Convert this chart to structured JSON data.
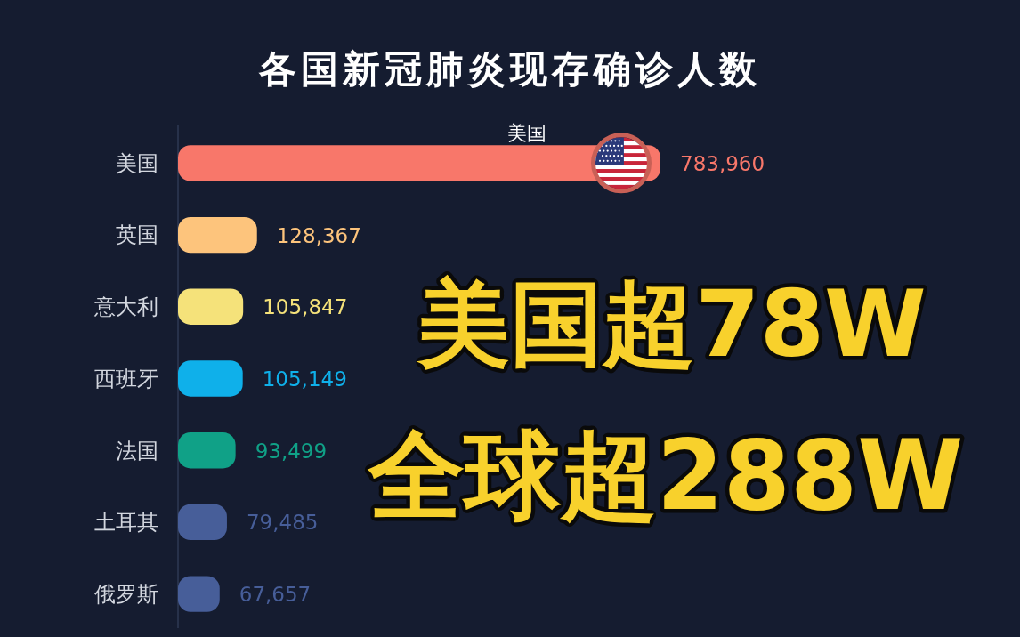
{
  "chart_data": {
    "type": "bar",
    "orientation": "horizontal",
    "title": "各国新冠肺炎现存确诊人数",
    "categories": [
      "美国",
      "英国",
      "意大利",
      "西班牙",
      "法国",
      "土耳其",
      "俄罗斯"
    ],
    "values": [
      783960,
      128367,
      105847,
      105149,
      93499,
      79485,
      67657
    ],
    "value_labels": [
      "783,960",
      "128,367",
      "105,847",
      "105,149",
      "93,499",
      "79,485",
      "67,657"
    ],
    "colors": [
      "#f8776a",
      "#fdc47c",
      "#f5e27a",
      "#0fb0ea",
      "#10a187",
      "#475e99",
      "#475e99"
    ],
    "tick_labels": "y",
    "annotations": [
      "美国",
      "美国超78W",
      "全球超288W"
    ]
  }
}
